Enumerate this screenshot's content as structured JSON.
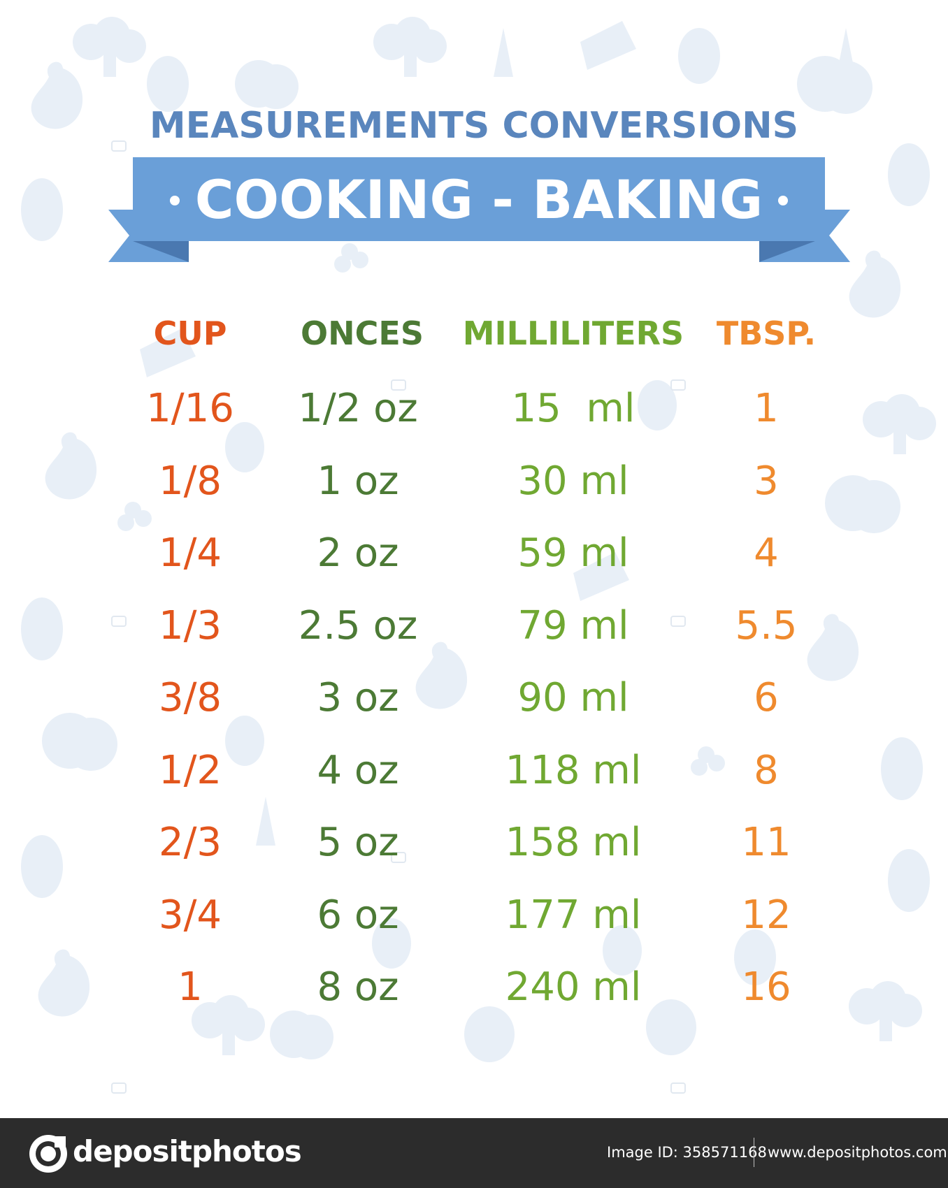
{
  "poster": {
    "title": "MEASUREMENTS CONVERSIONS",
    "banner": "COOKING - BAKING"
  },
  "table": {
    "columns": [
      "CUP",
      "ONCES",
      "MILLILITERS",
      "TBSP."
    ],
    "rows": [
      [
        "1/16",
        "1/2 oz",
        "15  ml",
        "1"
      ],
      [
        "1/8",
        "1 oz",
        "30 ml",
        "3"
      ],
      [
        "1/4",
        "2 oz",
        "59 ml",
        "4"
      ],
      [
        "1/3",
        "2.5 oz",
        "79 ml",
        "5.5"
      ],
      [
        "3/8",
        "3 oz",
        "90 ml",
        "6"
      ],
      [
        "1/2",
        "4 oz",
        "118 ml",
        "8"
      ],
      [
        "2/3",
        "5 oz",
        "158 ml",
        "11"
      ],
      [
        "3/4",
        "6 oz",
        "177 ml",
        "12"
      ],
      [
        "1",
        "8 oz",
        "240 ml",
        "16"
      ]
    ]
  },
  "footer": {
    "brand": "depositphotos",
    "image_id": "Image ID: 358571168",
    "website": "www.depositphotos.com"
  },
  "colors": {
    "title": "#5a86bd",
    "ribbon": "#6a9fd8",
    "ribbon_dark": "#4a78b0",
    "cup": "#e2551c",
    "ounces": "#4c7a35",
    "milliliters": "#70a832",
    "tbsp": "#ef8a2e",
    "pattern": "#e6eef6",
    "footer_bg": "#2c2c2c"
  },
  "icons": [
    "apple-icon",
    "pear-icon",
    "broccoli-icon",
    "cheese-icon",
    "carrot-icon",
    "parsley-icon",
    "camera-icon"
  ]
}
